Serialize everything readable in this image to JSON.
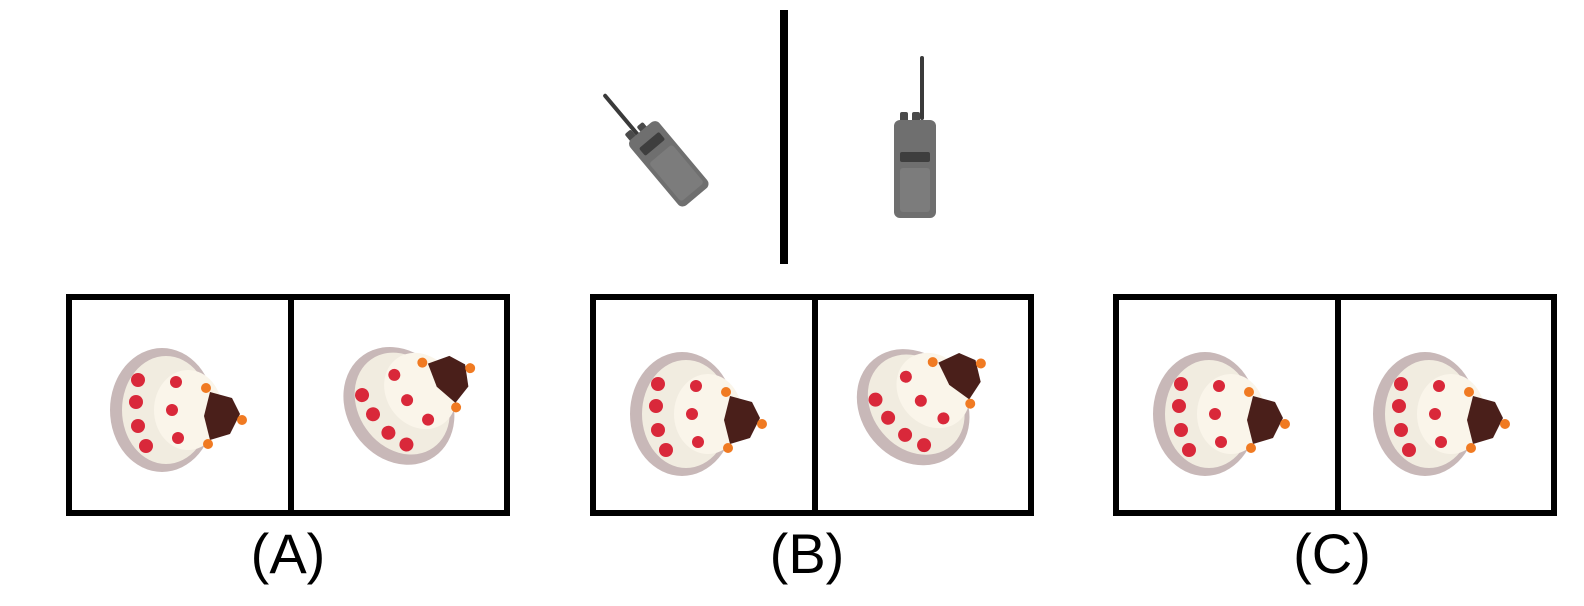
{
  "reference": {
    "left_object_icon": "walkie-talkie-icon",
    "right_object_icon": "walkie-talkie-icon",
    "left_rotation_deg": -40,
    "right_rotation_deg": 0
  },
  "options": [
    {
      "label": "(A)",
      "left_icon": "cake-icon",
      "right_icon": "cake-icon",
      "left_rotation_deg": 0,
      "right_rotation_deg": -35
    },
    {
      "label": "(B)",
      "left_icon": "cake-icon",
      "right_icon": "cake-icon",
      "left_rotation_deg": 0,
      "right_rotation_deg": -40
    },
    {
      "label": "(C)",
      "left_icon": "cake-icon",
      "right_icon": "cake-icon",
      "left_rotation_deg": 0,
      "right_rotation_deg": 0
    }
  ],
  "colors": {
    "radio_body": "#6f6f6f",
    "cake_cream": "#f1ece0",
    "cake_red": "#d9283a",
    "cake_plaque": "#4a1f1a",
    "cake_orange": "#f07a22",
    "border": "#000000"
  }
}
